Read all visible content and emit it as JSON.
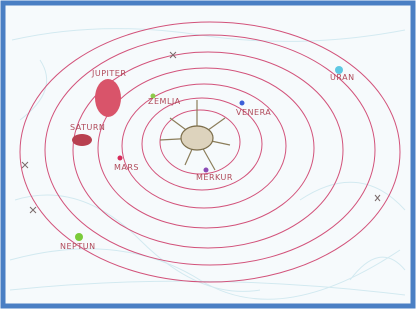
{
  "planets": [
    {
      "label": "JUPITER"
    },
    {
      "label": "SATURN"
    },
    {
      "label": "ZEMLJA"
    },
    {
      "label": "VENERA"
    },
    {
      "label": "MARS"
    },
    {
      "label": "MERKUR"
    },
    {
      "label": "URAN"
    },
    {
      "label": "NEPTUN"
    }
  ]
}
